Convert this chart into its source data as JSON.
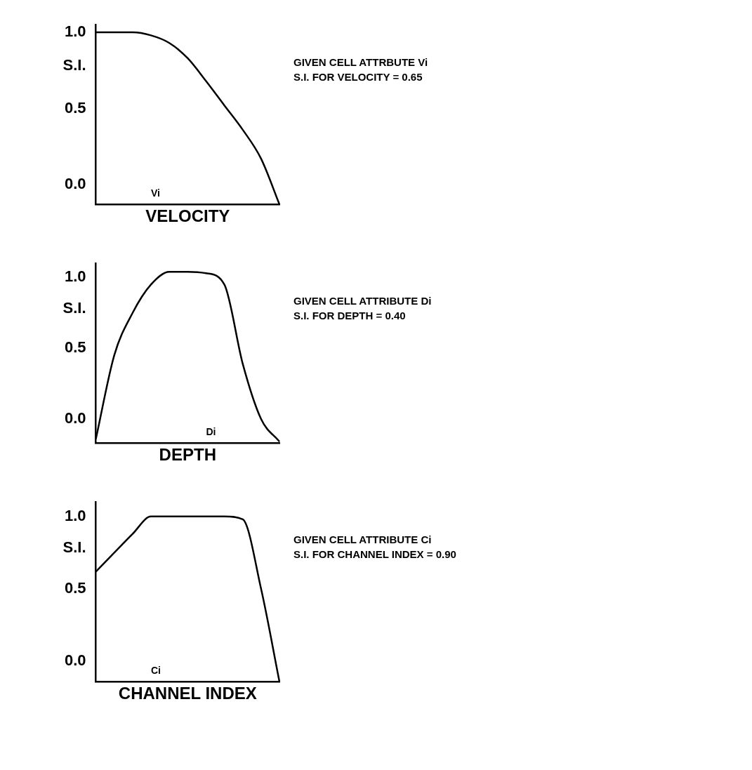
{
  "chart_data": [
    {
      "type": "line",
      "xlabel": "VELOCITY",
      "ylabel": "S.I.",
      "categories": [
        null,
        null,
        null,
        null,
        null,
        null,
        null,
        null,
        null,
        null,
        null
      ],
      "series": [
        {
          "color": "#000000",
          "values": [
            1.0,
            1.0,
            1.0,
            0.98,
            0.93,
            0.83,
            0.68,
            0.52,
            0.36,
            0.17,
            -0.13
          ]
        }
      ],
      "ylim": [
        -0.13,
        1.05
      ],
      "yticks": [
        {
          "value": 0,
          "label": "0.0"
        },
        {
          "value": 0.5,
          "label": "0.5"
        },
        {
          "value": 1,
          "label": "1.0"
        }
      ],
      "tick_labels": "y",
      "grid": false,
      "legend": false,
      "marker": "none",
      "line_style": "solid",
      "annotations": [
        "GIVEN CELL ATTRBUTE Vi",
        "S.I. FOR VELOCITY = 0.65",
        "Vi"
      ]
    },
    {
      "type": "line",
      "xlabel": "DEPTH",
      "ylabel": "S.I.",
      "categories": [
        null,
        null,
        null,
        null,
        null,
        null,
        null,
        null,
        null,
        null,
        null
      ],
      "series": [
        {
          "color": "#000000",
          "values": [
            -0.14,
            0.45,
            0.75,
            0.95,
            1.04,
            1.04,
            1.03,
            0.95,
            0.39,
            0.0,
            -0.16
          ]
        }
      ],
      "ylim": [
        -0.17,
        1.1
      ],
      "yticks": [
        {
          "value": 0,
          "label": "0.0"
        },
        {
          "value": 0.5,
          "label": "0.5"
        },
        {
          "value": 1,
          "label": "1.0"
        }
      ],
      "tick_labels": "y",
      "grid": false,
      "legend": false,
      "marker": "none",
      "line_style": "solid",
      "annotations": [
        "GIVEN CELL ATTRIBUTE Di",
        "S.I. FOR DEPTH  =  0.40",
        "Di"
      ]
    },
    {
      "type": "line",
      "xlabel": "CHANNEL INDEX",
      "ylabel": "S.I.",
      "categories": [
        null,
        null,
        null,
        null,
        null,
        null,
        null,
        null,
        null,
        null,
        null
      ],
      "series": [
        {
          "color": "#000000",
          "values": [
            0.62,
            0.75,
            0.88,
            1.0,
            1.0,
            1.0,
            1.0,
            1.0,
            0.98,
            0.5,
            -0.14
          ]
        }
      ],
      "ylim": [
        -0.14,
        1.1
      ],
      "yticks": [
        {
          "value": 0,
          "label": "0.0"
        },
        {
          "value": 0.5,
          "label": "0.5"
        },
        {
          "value": 1,
          "label": "1.0"
        }
      ],
      "tick_labels": "y",
      "grid": false,
      "legend": false,
      "marker": "none",
      "line_style": "solid",
      "annotations": [
        "GIVEN CELL ATTRIBUTE Ci",
        "S.I. FOR CHANNEL INDEX = 0.90",
        "Ci"
      ]
    }
  ]
}
